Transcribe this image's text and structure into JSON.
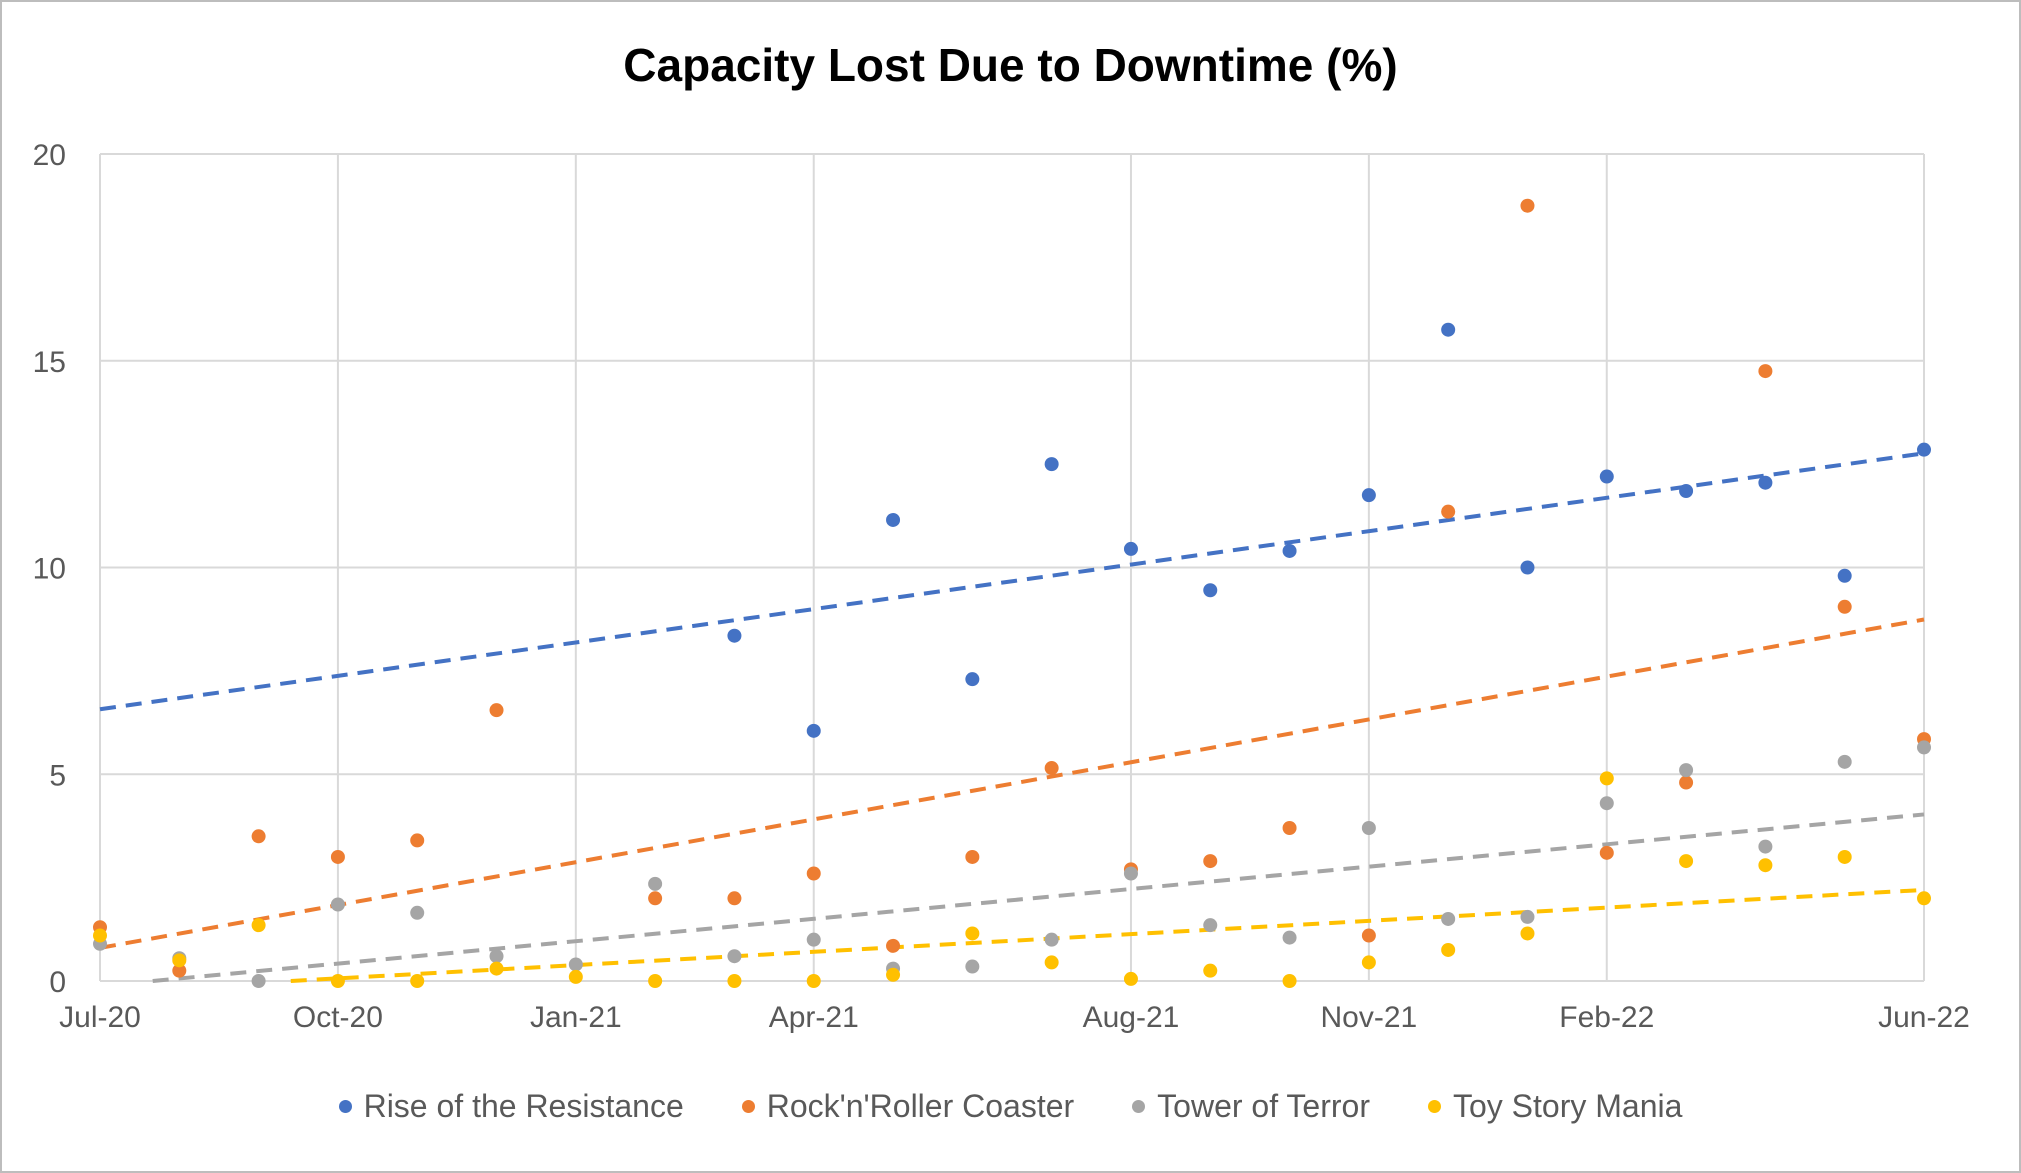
{
  "chart_data": {
    "type": "scatter",
    "title": "Capacity Lost Due to Downtime (%)",
    "xlabel": "",
    "ylabel": "",
    "ylim": [
      0,
      20
    ],
    "yticks": [
      0,
      5,
      10,
      15,
      20
    ],
    "x_tick_labels": [
      "Jul-20",
      "Oct-20",
      "Jan-21",
      "Apr-21",
      "Aug-21",
      "Nov-21",
      "Feb-22",
      "Jun-22"
    ],
    "x": [
      "Jul-20",
      "Aug-20",
      "Sep-20",
      "Oct-20",
      "Nov-20",
      "Dec-20",
      "Jan-21",
      "Feb-21",
      "Mar-21",
      "Apr-21",
      "May-21",
      "Jun-21",
      "Jul-21",
      "Aug-21",
      "Sep-21",
      "Oct-21",
      "Nov-21",
      "Dec-21",
      "Jan-22",
      "Feb-22",
      "Mar-22",
      "Apr-22",
      "May-22",
      "Jun-22"
    ],
    "grid": true,
    "legend_position": "bottom",
    "trendlines": "linear, dashed",
    "series": [
      {
        "name": "Rise of the Resistance",
        "color": "#4472C4",
        "values": [
          null,
          null,
          null,
          null,
          null,
          null,
          null,
          null,
          8.35,
          6.05,
          11.15,
          7.3,
          12.5,
          10.45,
          9.45,
          10.4,
          11.75,
          15.75,
          10.0,
          12.2,
          11.85,
          12.05,
          9.8,
          12.85
        ]
      },
      {
        "name": "Rock'n'Roller Coaster",
        "color": "#ED7D31",
        "values": [
          1.3,
          0.25,
          3.5,
          3.0,
          3.4,
          6.55,
          null,
          2.0,
          2.0,
          2.6,
          0.85,
          3.0,
          5.15,
          2.7,
          2.9,
          3.7,
          1.1,
          11.35,
          18.75,
          3.1,
          4.8,
          14.75,
          9.05,
          5.85
        ]
      },
      {
        "name": "Tower of Terror",
        "color": "#A5A5A5",
        "values": [
          0.9,
          0.55,
          0.0,
          1.85,
          1.65,
          0.6,
          0.4,
          2.35,
          0.6,
          1.0,
          0.3,
          0.35,
          1.0,
          2.6,
          1.35,
          1.05,
          3.7,
          1.5,
          1.55,
          4.3,
          5.1,
          3.25,
          5.3,
          5.65
        ]
      },
      {
        "name": "Toy Story Mania",
        "color": "#FFC000",
        "values": [
          1.1,
          0.5,
          1.35,
          0.0,
          0.0,
          0.3,
          0.1,
          0.0,
          0.0,
          0.0,
          0.15,
          1.15,
          0.45,
          0.05,
          0.25,
          0.0,
          0.45,
          0.75,
          1.15,
          4.9,
          2.9,
          2.8,
          3.0,
          2.0
        ]
      }
    ]
  }
}
